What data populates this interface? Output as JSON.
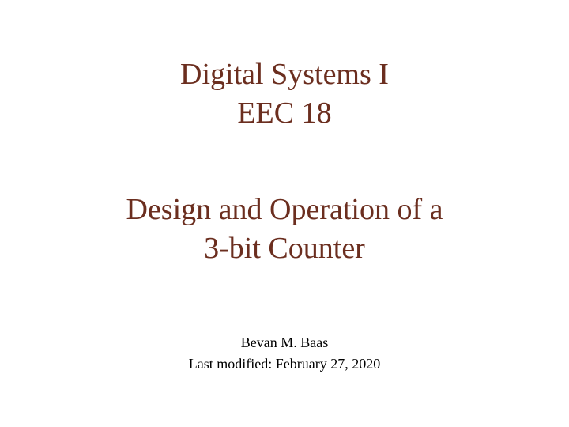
{
  "slide": {
    "course_name": "Digital Systems I",
    "course_code": "EEC 18",
    "topic_line1": "Design and Operation of a",
    "topic_line2": "3-bit Counter",
    "author": "Bevan M. Baas",
    "last_modified": "Last modified: February 27, 2020"
  },
  "style": {
    "title_color": "#6b2e1f",
    "body_text_color": "#000000",
    "background_color": "#ffffff",
    "title_fontsize": 38,
    "author_fontsize": 18,
    "font_family": "Palatino Linotype"
  }
}
